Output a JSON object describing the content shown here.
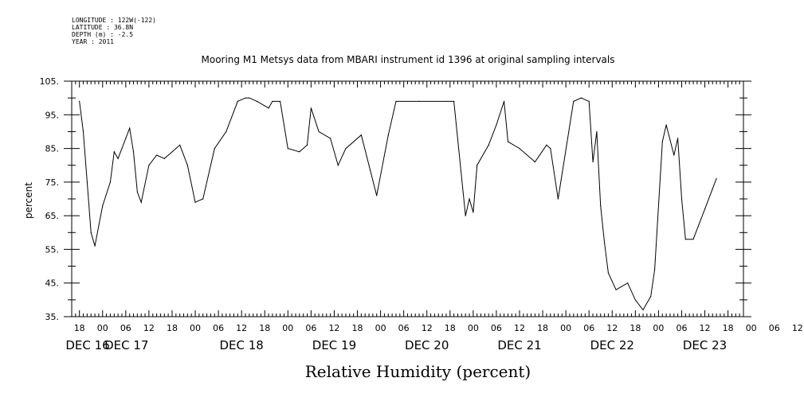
{
  "header": {
    "meta_lines": [
      "LONGITUDE : 122W(-122)",
      "LATITUDE : 36.8N",
      "DEPTH (m) : -2.5",
      "YEAR : 2011"
    ],
    "title": "Mooring M1 Metsys data from MBARI instrument id 1396 at original sampling intervals"
  },
  "chart_data": {
    "type": "line",
    "title": "Mooring M1 Metsys data from MBARI instrument id 1396 at original sampling intervals",
    "xlabel": "Relative Humidity (percent)",
    "ylabel": "percent",
    "ylim": [
      35,
      105
    ],
    "yticks": [
      "35.",
      "45.",
      "55.",
      "65.",
      "75.",
      "85.",
      "95.",
      "105."
    ],
    "xlim_hours_labels": [
      "DEC 16 16:00",
      "DEC 23 22:00"
    ],
    "x_hour_tick_labels": [
      "18",
      "00",
      "06",
      "12",
      "18",
      "00",
      "06",
      "12",
      "18",
      "00",
      "06",
      "12",
      "18",
      "00",
      "06",
      "12",
      "18",
      "00",
      "06",
      "12",
      "18",
      "00",
      "06",
      "12",
      "18",
      "00",
      "06",
      "12",
      "18",
      "00",
      "06",
      "12"
    ],
    "x_day_labels": [
      "DEC 16",
      "DEC 17",
      "DEC 18",
      "DEC 19",
      "DEC 20",
      "DEC 21",
      "DEC 22",
      "DEC 23"
    ],
    "grid": false,
    "series": [
      {
        "color": "#000000",
        "x": [
          "DEC 16 18:00",
          "DEC 16 19:00",
          "DEC 16 20:00",
          "DEC 16 21:00",
          "DEC 16 22:00",
          "DEC 16 23:00",
          "DEC 17 00:00",
          "DEC 17 02:00",
          "DEC 17 03:00",
          "DEC 17 04:00",
          "DEC 17 06:00",
          "DEC 17 07:00",
          "DEC 17 08:00",
          "DEC 17 09:00",
          "DEC 17 10:00",
          "DEC 17 12:00",
          "DEC 17 14:00",
          "DEC 17 16:00",
          "DEC 17 19:00",
          "DEC 17 20:00",
          "DEC 17 22:00",
          "DEC 18 00:00",
          "DEC 18 02:00",
          "DEC 18 05:00",
          "DEC 18 08:00",
          "DEC 18 11:00",
          "DEC 18 13:00",
          "DEC 18 14:00",
          "DEC 18 16:00",
          "DEC 18 19:00",
          "DEC 18 20:00",
          "DEC 18 22:00",
          "DEC 19 00:00",
          "DEC 19 03:00",
          "DEC 19 05:00",
          "DEC 19 06:00",
          "DEC 19 08:00",
          "DEC 19 11:00",
          "DEC 19 13:00",
          "DEC 19 15:00",
          "DEC 19 19:00",
          "DEC 19 23:00",
          "DEC 20 02:00",
          "DEC 20 04:00",
          "DEC 20 10:00",
          "DEC 20 17:00",
          "DEC 20 19:00",
          "DEC 20 22:00",
          "DEC 20 23:00",
          "DEC 21 00:00",
          "DEC 21 01:00",
          "DEC 21 04:00",
          "DEC 21 06:00",
          "DEC 21 08:00",
          "DEC 21 09:00",
          "DEC 21 12:00",
          "DEC 21 16:00",
          "DEC 21 19:00",
          "DEC 21 20:00",
          "DEC 21 22:00",
          "DEC 22 02:00",
          "DEC 22 04:00",
          "DEC 22 06:00",
          "DEC 22 07:00",
          "DEC 22 08:00",
          "DEC 22 09:00",
          "DEC 22 10:00",
          "DEC 22 11:00",
          "DEC 22 13:00",
          "DEC 22 16:00",
          "DEC 22 18:00",
          "DEC 22 20:00",
          "DEC 22 22:00",
          "DEC 22 23:00",
          "DEC 23 01:00",
          "DEC 23 02:00",
          "DEC 23 04:00",
          "DEC 23 05:00",
          "DEC 23 06:00",
          "DEC 23 07:00",
          "DEC 23 09:00",
          "DEC 23 12:00",
          "DEC 23 14:00",
          "DEC 23 15:00"
        ],
        "values": [
          99,
          90,
          75,
          60,
          56,
          62,
          68,
          75,
          84,
          82,
          88,
          91,
          84,
          72,
          69,
          80,
          83,
          82,
          85,
          86,
          80,
          69,
          70,
          85,
          90,
          99,
          100,
          100,
          99,
          97,
          99,
          99,
          85,
          84,
          86,
          97,
          90,
          88,
          80,
          85,
          89,
          71,
          89,
          99,
          99,
          99,
          99,
          65,
          70,
          66,
          80,
          86,
          92,
          99,
          87,
          85,
          81,
          86,
          85,
          70,
          99,
          100,
          99,
          81,
          90,
          68,
          57,
          48,
          43,
          45,
          40,
          37,
          41,
          49,
          87,
          92,
          83,
          88,
          70,
          58,
          58,
          67,
          73,
          76
        ]
      }
    ]
  }
}
